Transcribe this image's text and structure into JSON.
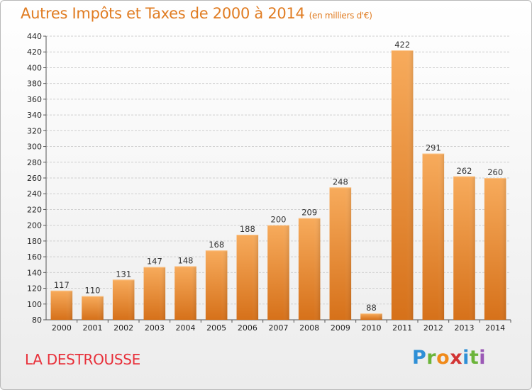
{
  "header": {
    "title": "Autres Impôts et Taxes de 2000 à 2014",
    "unit": "(en milliers d'€)"
  },
  "footer": {
    "commune": "LA DESTROUSSE",
    "logo": [
      "P",
      "r",
      "o",
      "x",
      "i",
      "t",
      "i"
    ]
  },
  "colors": {
    "bar_light": "#f6a857",
    "bar_dark": "#d9741d",
    "grid": "#cfcfcf",
    "title": "#e07c22",
    "commune": "#e8303a"
  },
  "chart_data": {
    "type": "bar",
    "title": "Autres Impôts et Taxes de 2000 à 2014",
    "ylabel": "",
    "xlabel": "",
    "categories": [
      "2000",
      "2001",
      "2002",
      "2003",
      "2004",
      "2005",
      "2006",
      "2007",
      "2008",
      "2009",
      "2010",
      "2011",
      "2012",
      "2013",
      "2014"
    ],
    "values": [
      117,
      110,
      131,
      147,
      148,
      168,
      188,
      200,
      209,
      248,
      88,
      422,
      291,
      262,
      260
    ],
    "ylim": [
      80,
      440
    ],
    "yticks": [
      80,
      100,
      120,
      140,
      160,
      180,
      200,
      220,
      240,
      260,
      280,
      300,
      320,
      340,
      360,
      380,
      400,
      420,
      440
    ],
    "grid": true,
    "data_labels": true
  }
}
